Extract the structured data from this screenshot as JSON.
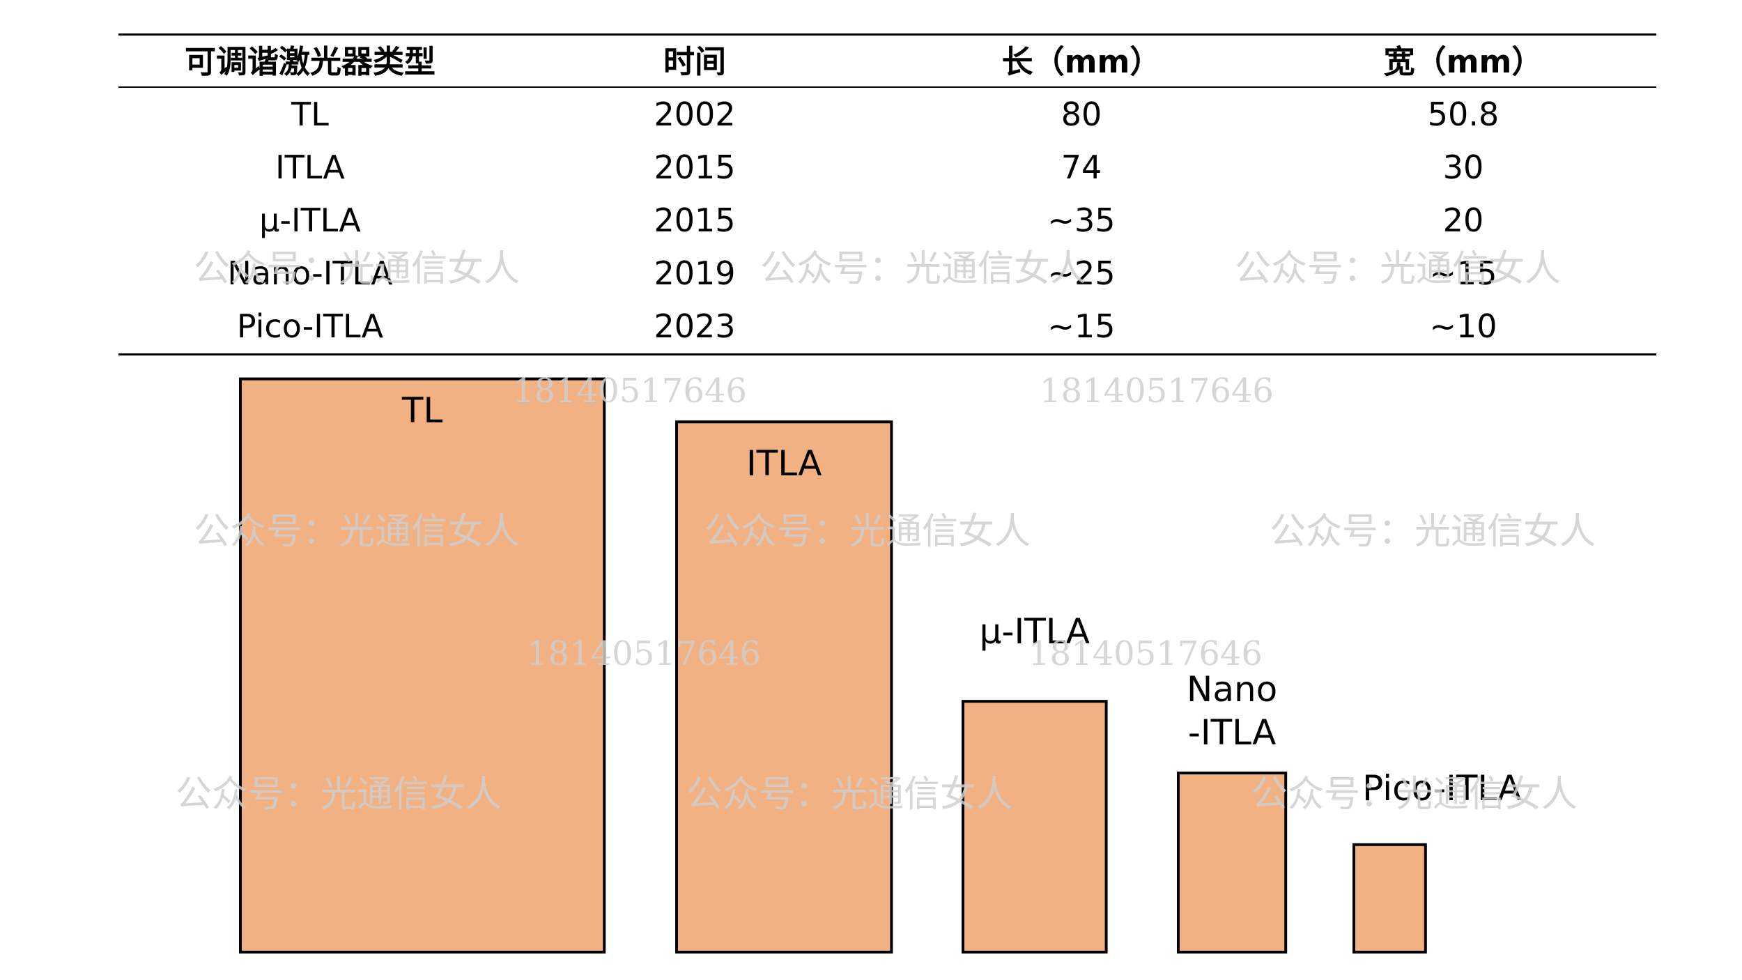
{
  "table": {
    "headers": [
      "可调谐激光器类型",
      "时间",
      "长（mm）",
      "宽（mm）"
    ],
    "rows": [
      [
        "TL",
        "2002",
        "80",
        "50.8"
      ],
      [
        "ITLA",
        "2015",
        "74",
        "30"
      ],
      [
        "μ-ITLA",
        "2015",
        "~35",
        "20"
      ],
      [
        "Nano-ITLA",
        "2019",
        "~25",
        "~15"
      ],
      [
        "Pico-ITLA",
        "2023",
        "~15",
        "~10"
      ]
    ]
  },
  "chart_data": {
    "type": "bar",
    "title": "",
    "categories": [
      "TL",
      "ITLA",
      "μ-ITLA",
      "Nano-ITLA",
      "Pico-ITLA"
    ],
    "label_lines": [
      [
        "TL"
      ],
      [
        "ITLA"
      ],
      [
        "μ-ITLA"
      ],
      [
        "Nano",
        "-ITLA"
      ],
      [
        "Pico-ITLA"
      ]
    ],
    "series": [
      {
        "name": "长（mm）",
        "values": [
          80,
          74,
          35,
          25,
          15
        ]
      },
      {
        "name": "宽（mm）",
        "values": [
          50.8,
          30,
          20,
          15,
          10
        ]
      }
    ],
    "units": "mm",
    "fill_color": "#f2b183",
    "stroke_color": "#000000"
  },
  "watermarks": {
    "account": "公众号：光通信女人",
    "number": "18140517646",
    "color": "#cfcfcf"
  }
}
